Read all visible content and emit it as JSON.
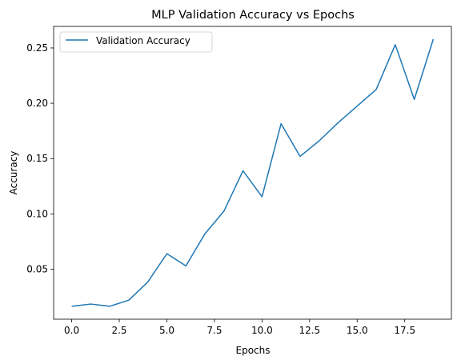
{
  "chart_data": {
    "type": "line",
    "title": "MLP Validation Accuracy vs Epochs",
    "xlabel": "Epochs",
    "ylabel": "Accuracy",
    "xlim": [
      -0.95,
      19.95
    ],
    "ylim": [
      0.0048,
      0.2695
    ],
    "xticks": [
      0.0,
      2.5,
      5.0,
      7.5,
      10.0,
      12.5,
      15.0,
      17.5
    ],
    "xtick_labels": [
      "0.0",
      "2.5",
      "5.0",
      "7.5",
      "10.0",
      "12.5",
      "15.0",
      "17.5"
    ],
    "yticks": [
      0.05,
      0.1,
      0.15,
      0.2,
      0.25
    ],
    "ytick_labels": [
      "0.05",
      "0.10",
      "0.15",
      "0.20",
      "0.25"
    ],
    "grid": false,
    "legend_position": "upper-left",
    "series": [
      {
        "name": "Validation Accuracy",
        "color": "#1f77b4",
        "x": [
          0,
          1,
          2,
          3,
          4,
          5,
          6,
          7,
          8,
          9,
          10,
          11,
          12,
          13,
          14,
          15,
          16,
          17,
          18,
          19
        ],
        "y": [
          0.0165,
          0.0185,
          0.0165,
          0.022,
          0.0385,
          0.064,
          0.053,
          0.082,
          0.1025,
          0.139,
          0.1155,
          0.1815,
          0.152,
          0.166,
          0.1825,
          0.1975,
          0.2125,
          0.253,
          0.2035,
          0.258
        ]
      }
    ]
  }
}
